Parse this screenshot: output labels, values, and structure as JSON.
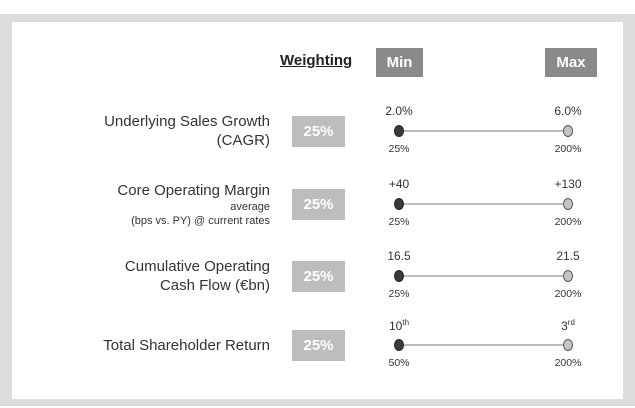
{
  "header": {
    "weighting": "Weighting",
    "min": "Min",
    "max": "Max"
  },
  "rows": [
    {
      "label": [
        "Underlying Sales Growth",
        "(CAGR)"
      ],
      "notes": [],
      "weight": "25%",
      "min": {
        "number": "2.0%",
        "suffix": null
      },
      "max": {
        "number": "6.0%",
        "suffix": null
      },
      "min_payout": "25%",
      "max_payout": "200%"
    },
    {
      "label": [
        "Core Operating Margin"
      ],
      "notes": [
        "average",
        "(bps vs. PY) @ current rates"
      ],
      "weight": "25%",
      "min": {
        "number": "+40",
        "suffix": null
      },
      "max": {
        "number": "+130",
        "suffix": null
      },
      "min_payout": "25%",
      "max_payout": "200%"
    },
    {
      "label": [
        "Cumulative Operating",
        "Cash Flow (€bn)"
      ],
      "notes": [],
      "weight": "25%",
      "min": {
        "number": "16.5",
        "suffix": null
      },
      "max": {
        "number": "21.5",
        "suffix": null
      },
      "min_payout": "25%",
      "max_payout": "200%"
    },
    {
      "label": [
        "Total Shareholder Return"
      ],
      "notes": [],
      "weight": "25%",
      "min": {
        "number": "10",
        "suffix": "th"
      },
      "max": {
        "number": "3",
        "suffix": "rd"
      },
      "min_payout": "50%",
      "max_payout": "200%"
    }
  ]
}
